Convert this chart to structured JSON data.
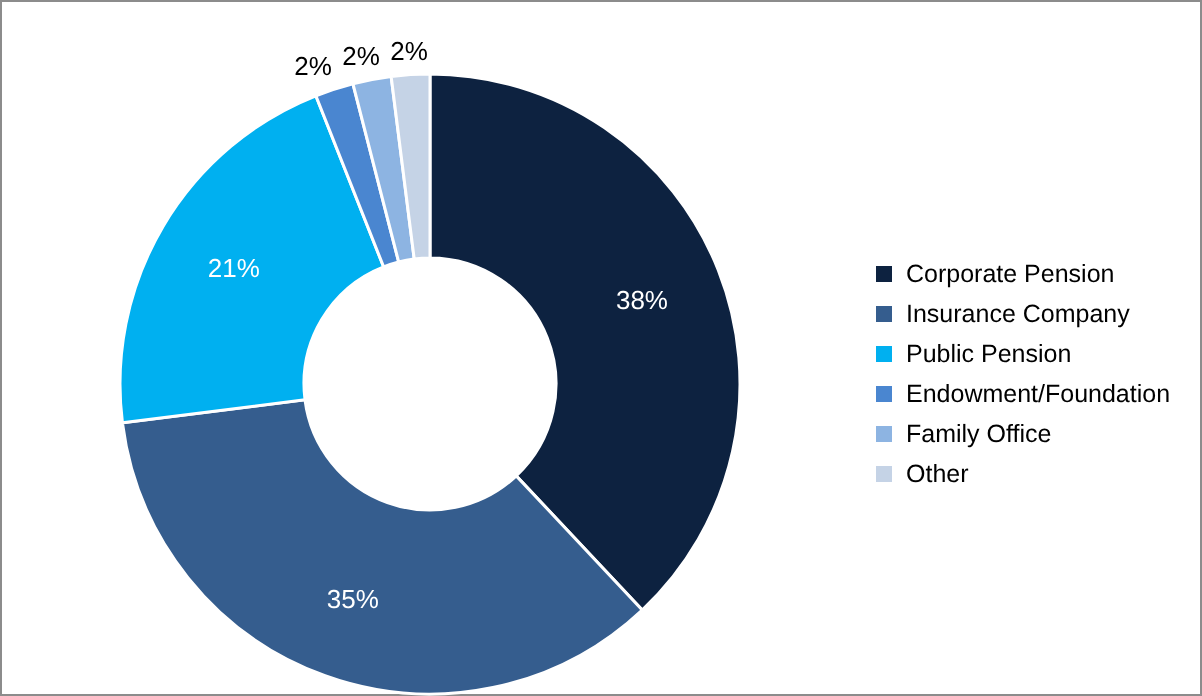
{
  "chart_data": {
    "type": "donut",
    "categories": [
      "Corporate Pension",
      "Insurance Company",
      "Public Pension",
      "Endowment/Foundation",
      "Family Office",
      "Other"
    ],
    "values": [
      38,
      35,
      21,
      2,
      2,
      2
    ],
    "colors": [
      "#0d2240",
      "#355d8e",
      "#00b0f0",
      "#4a86d0",
      "#8db4e2",
      "#c5d3e6"
    ],
    "value_labels": [
      "38%",
      "35%",
      "21%",
      "2%",
      "2%",
      "2%"
    ],
    "legend": "right"
  }
}
